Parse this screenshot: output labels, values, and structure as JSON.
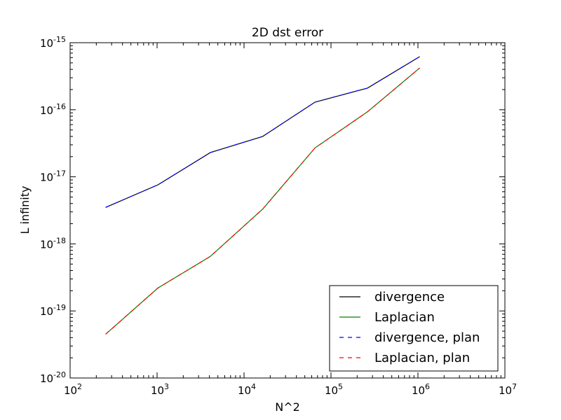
{
  "chart_data": {
    "type": "line",
    "title": "2D dst error",
    "xlabel": "N^2",
    "ylabel": "L infinity",
    "xscale": "log",
    "yscale": "log",
    "xlim": [
      100,
      10000000
    ],
    "ylim": [
      1e-20,
      1e-15
    ],
    "grid": false,
    "legend_position": "lower-right",
    "x_ticks": [
      {
        "base": "10",
        "exp": "2"
      },
      {
        "base": "10",
        "exp": "3"
      },
      {
        "base": "10",
        "exp": "4"
      },
      {
        "base": "10",
        "exp": "5"
      },
      {
        "base": "10",
        "exp": "6"
      },
      {
        "base": "10",
        "exp": "7"
      }
    ],
    "y_ticks": [
      {
        "base": "10",
        "exp": "-20"
      },
      {
        "base": "10",
        "exp": "-19"
      },
      {
        "base": "10",
        "exp": "-18"
      },
      {
        "base": "10",
        "exp": "-17"
      },
      {
        "base": "10",
        "exp": "-16"
      },
      {
        "base": "10",
        "exp": "-15"
      }
    ],
    "x": [
      256,
      1024,
      4096,
      16384,
      65536,
      262144,
      1048576
    ],
    "series": [
      {
        "name": "divergence",
        "color": "#000000",
        "style": "solid",
        "values": [
          3.5e-18,
          7.6e-18,
          2.3e-17,
          4e-17,
          1.3e-16,
          2.1e-16,
          6.2e-16
        ]
      },
      {
        "name": "Laplacian",
        "color": "#008000",
        "style": "solid",
        "values": [
          4.5e-20,
          2.2e-19,
          6.5e-19,
          3.3e-18,
          2.7e-17,
          9.3e-17,
          4.2e-16
        ]
      },
      {
        "name": "divergence, plan",
        "color": "#0000ff",
        "style": "dashed",
        "values": [
          3.5e-18,
          7.6e-18,
          2.3e-17,
          4e-17,
          1.3e-16,
          2.1e-16,
          6.2e-16
        ]
      },
      {
        "name": "Laplacian, plan",
        "color": "#ff0000",
        "style": "dashed",
        "values": [
          4.5e-20,
          2.2e-19,
          6.5e-19,
          3.3e-18,
          2.7e-17,
          9.3e-17,
          4.2e-16
        ]
      }
    ]
  }
}
